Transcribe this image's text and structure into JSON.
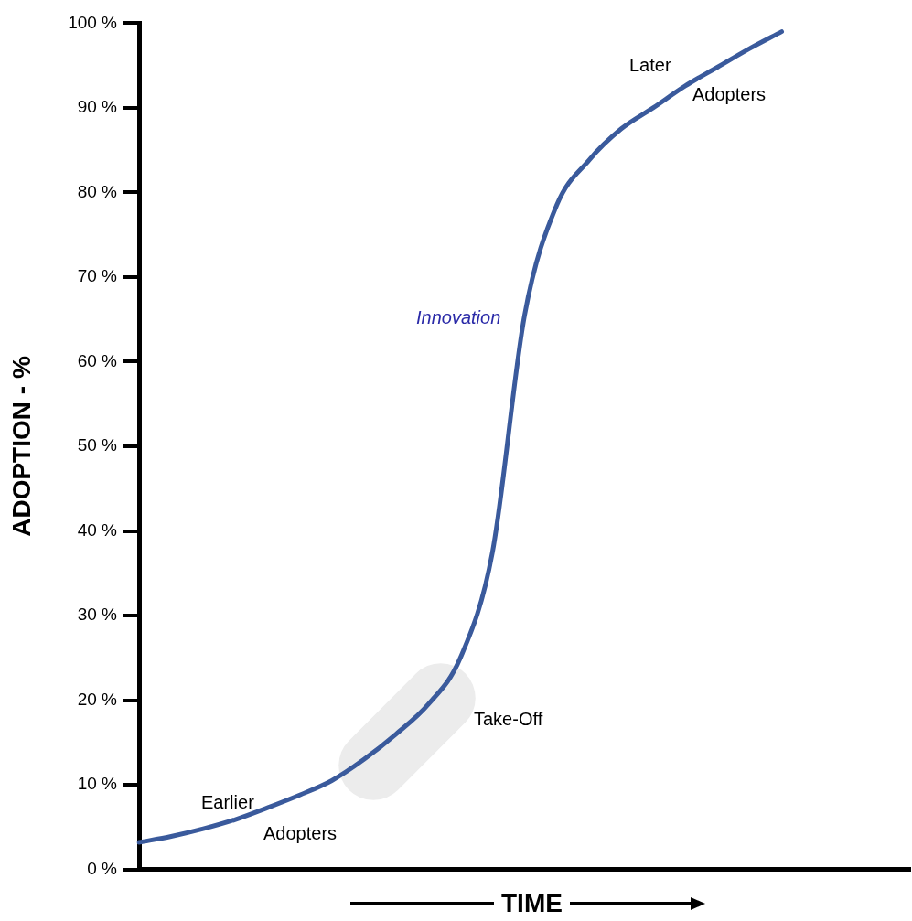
{
  "chart_data": {
    "type": "line",
    "ylabel": "ADOPTION - %",
    "xlabel": "TIME",
    "categories": [
      null,
      null,
      null,
      null,
      null,
      null,
      null,
      null,
      null,
      null,
      null,
      null,
      null,
      null,
      null,
      null,
      null,
      null,
      null,
      null,
      null,
      null,
      null,
      null,
      null
    ],
    "series": [
      {
        "color": "#3a5a9c",
        "values": [
          3.2,
          3.9,
          4.8,
          5.9,
          7.3,
          8.8,
          10.5,
          13.0,
          16.0,
          19.5,
          25.0,
          37.5,
          65.5,
          78.5,
          83.8,
          87.5,
          90.0,
          92.6,
          94.8,
          97.0,
          99.0,
          null,
          null,
          null,
          null
        ]
      }
    ],
    "ylim": [
      0,
      100
    ],
    "yticks": [
      {
        "value": 0,
        "label": "0 %"
      },
      {
        "value": 10,
        "label": "10 %"
      },
      {
        "value": 20,
        "label": "20 %"
      },
      {
        "value": 30,
        "label": "30 %"
      },
      {
        "value": 40,
        "label": "40 %"
      },
      {
        "value": 50,
        "label": "50 %"
      },
      {
        "value": 60,
        "label": "60 %"
      },
      {
        "value": 70,
        "label": "70 %"
      },
      {
        "value": 80,
        "label": "80 %"
      },
      {
        "value": 90,
        "label": "90 %"
      },
      {
        "value": 100,
        "label": "100 %"
      }
    ],
    "tick_labels": "y",
    "grid": false,
    "legend": false,
    "annotations": [
      "Later Adopters",
      "Innovation",
      "Take-Off",
      "Earlier Adopters"
    ]
  }
}
